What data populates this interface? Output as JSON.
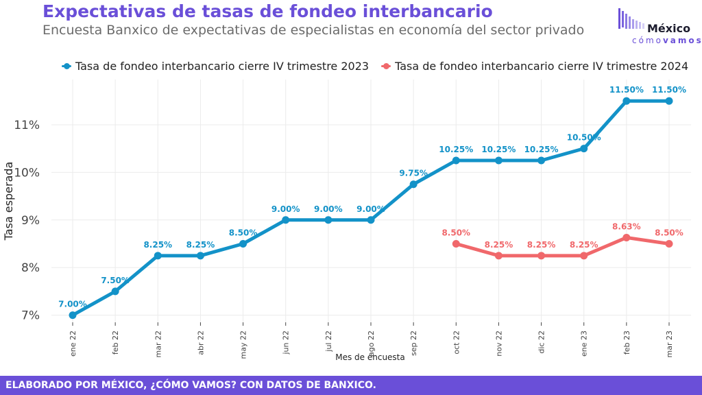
{
  "header": {
    "title": "Expectativas de tasas de fondeo interbancario",
    "subtitle": "Encuesta Banxico de expectativas de especialistas en economía del sector privado"
  },
  "logo": {
    "word": "México",
    "sub_a": "cómo",
    "sub_b": "vamos"
  },
  "footer": {
    "text": "ELABORADO POR MÉXICO, ¿CÓMO VAMOS? CON DATOS DE BANXICO."
  },
  "colors": {
    "accent": "#6a4fd8",
    "series_2023": "#1392c8",
    "series_2024": "#f0686b"
  },
  "chart_data": {
    "type": "line",
    "xlabel": "Mes de encuesta",
    "ylabel": "Tasa esperada",
    "ylim": [
      6.85,
      11.95
    ],
    "yticks": [
      7,
      8,
      9,
      10,
      11
    ],
    "ytick_labels": [
      "7%",
      "8%",
      "9%",
      "10%",
      "11%"
    ],
    "grid": true,
    "legend_position": "top",
    "categories": [
      "ene 22",
      "feb 22",
      "mar 22",
      "abr 22",
      "may 22",
      "jun 22",
      "jul 22",
      "ago 22",
      "sep 22",
      "oct 22",
      "nov 22",
      "dic 22",
      "ene 23",
      "feb 23",
      "mar 23"
    ],
    "series": [
      {
        "name": "Tasa de fondeo interbancario cierre IV trimestre 2023",
        "color": "#1392c8",
        "values": [
          7.0,
          7.5,
          8.25,
          8.25,
          8.5,
          9.0,
          9.0,
          9.0,
          9.75,
          10.25,
          10.25,
          10.25,
          10.5,
          11.5,
          11.5
        ],
        "labels": [
          "7.00%",
          "7.50%",
          "8.25%",
          "8.25%",
          "8.50%",
          "9.00%",
          "9.00%",
          "9.00%",
          "9.75%",
          "10.25%",
          "10.25%",
          "10.25%",
          "10.50%",
          "11.50%",
          "11.50%"
        ]
      },
      {
        "name": "Tasa de fondeo interbancario cierre IV trimestre 2024",
        "color": "#f0686b",
        "values": [
          null,
          null,
          null,
          null,
          null,
          null,
          null,
          null,
          null,
          8.5,
          8.25,
          8.25,
          8.25,
          8.63,
          8.5
        ],
        "labels": [
          null,
          null,
          null,
          null,
          null,
          null,
          null,
          null,
          null,
          "8.50%",
          "8.25%",
          "8.25%",
          "8.25%",
          "8.63%",
          "8.50%"
        ]
      }
    ]
  }
}
